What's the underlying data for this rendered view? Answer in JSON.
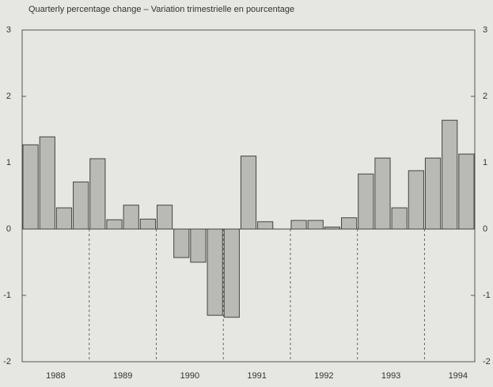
{
  "chart_data": {
    "type": "bar",
    "title": "Quarterly percentage change – Variation trimestrielle en pourcentage",
    "years": [
      "1988",
      "1989",
      "1990",
      "1991",
      "1992",
      "1993",
      "1994"
    ],
    "values": [
      1.27,
      1.39,
      0.32,
      0.71,
      1.06,
      0.14,
      0.36,
      0.15,
      0.36,
      -0.43,
      -0.5,
      -1.3,
      -1.33,
      1.1,
      0.11,
      0.0,
      0.13,
      0.13,
      0.03,
      0.17,
      0.83,
      1.07,
      0.32,
      0.88,
      1.07,
      1.64,
      1.13
    ],
    "color": "#b9b9b6",
    "ylim": [
      -2,
      3
    ],
    "yticks": [
      -2,
      -1,
      0,
      1,
      2,
      3
    ]
  }
}
